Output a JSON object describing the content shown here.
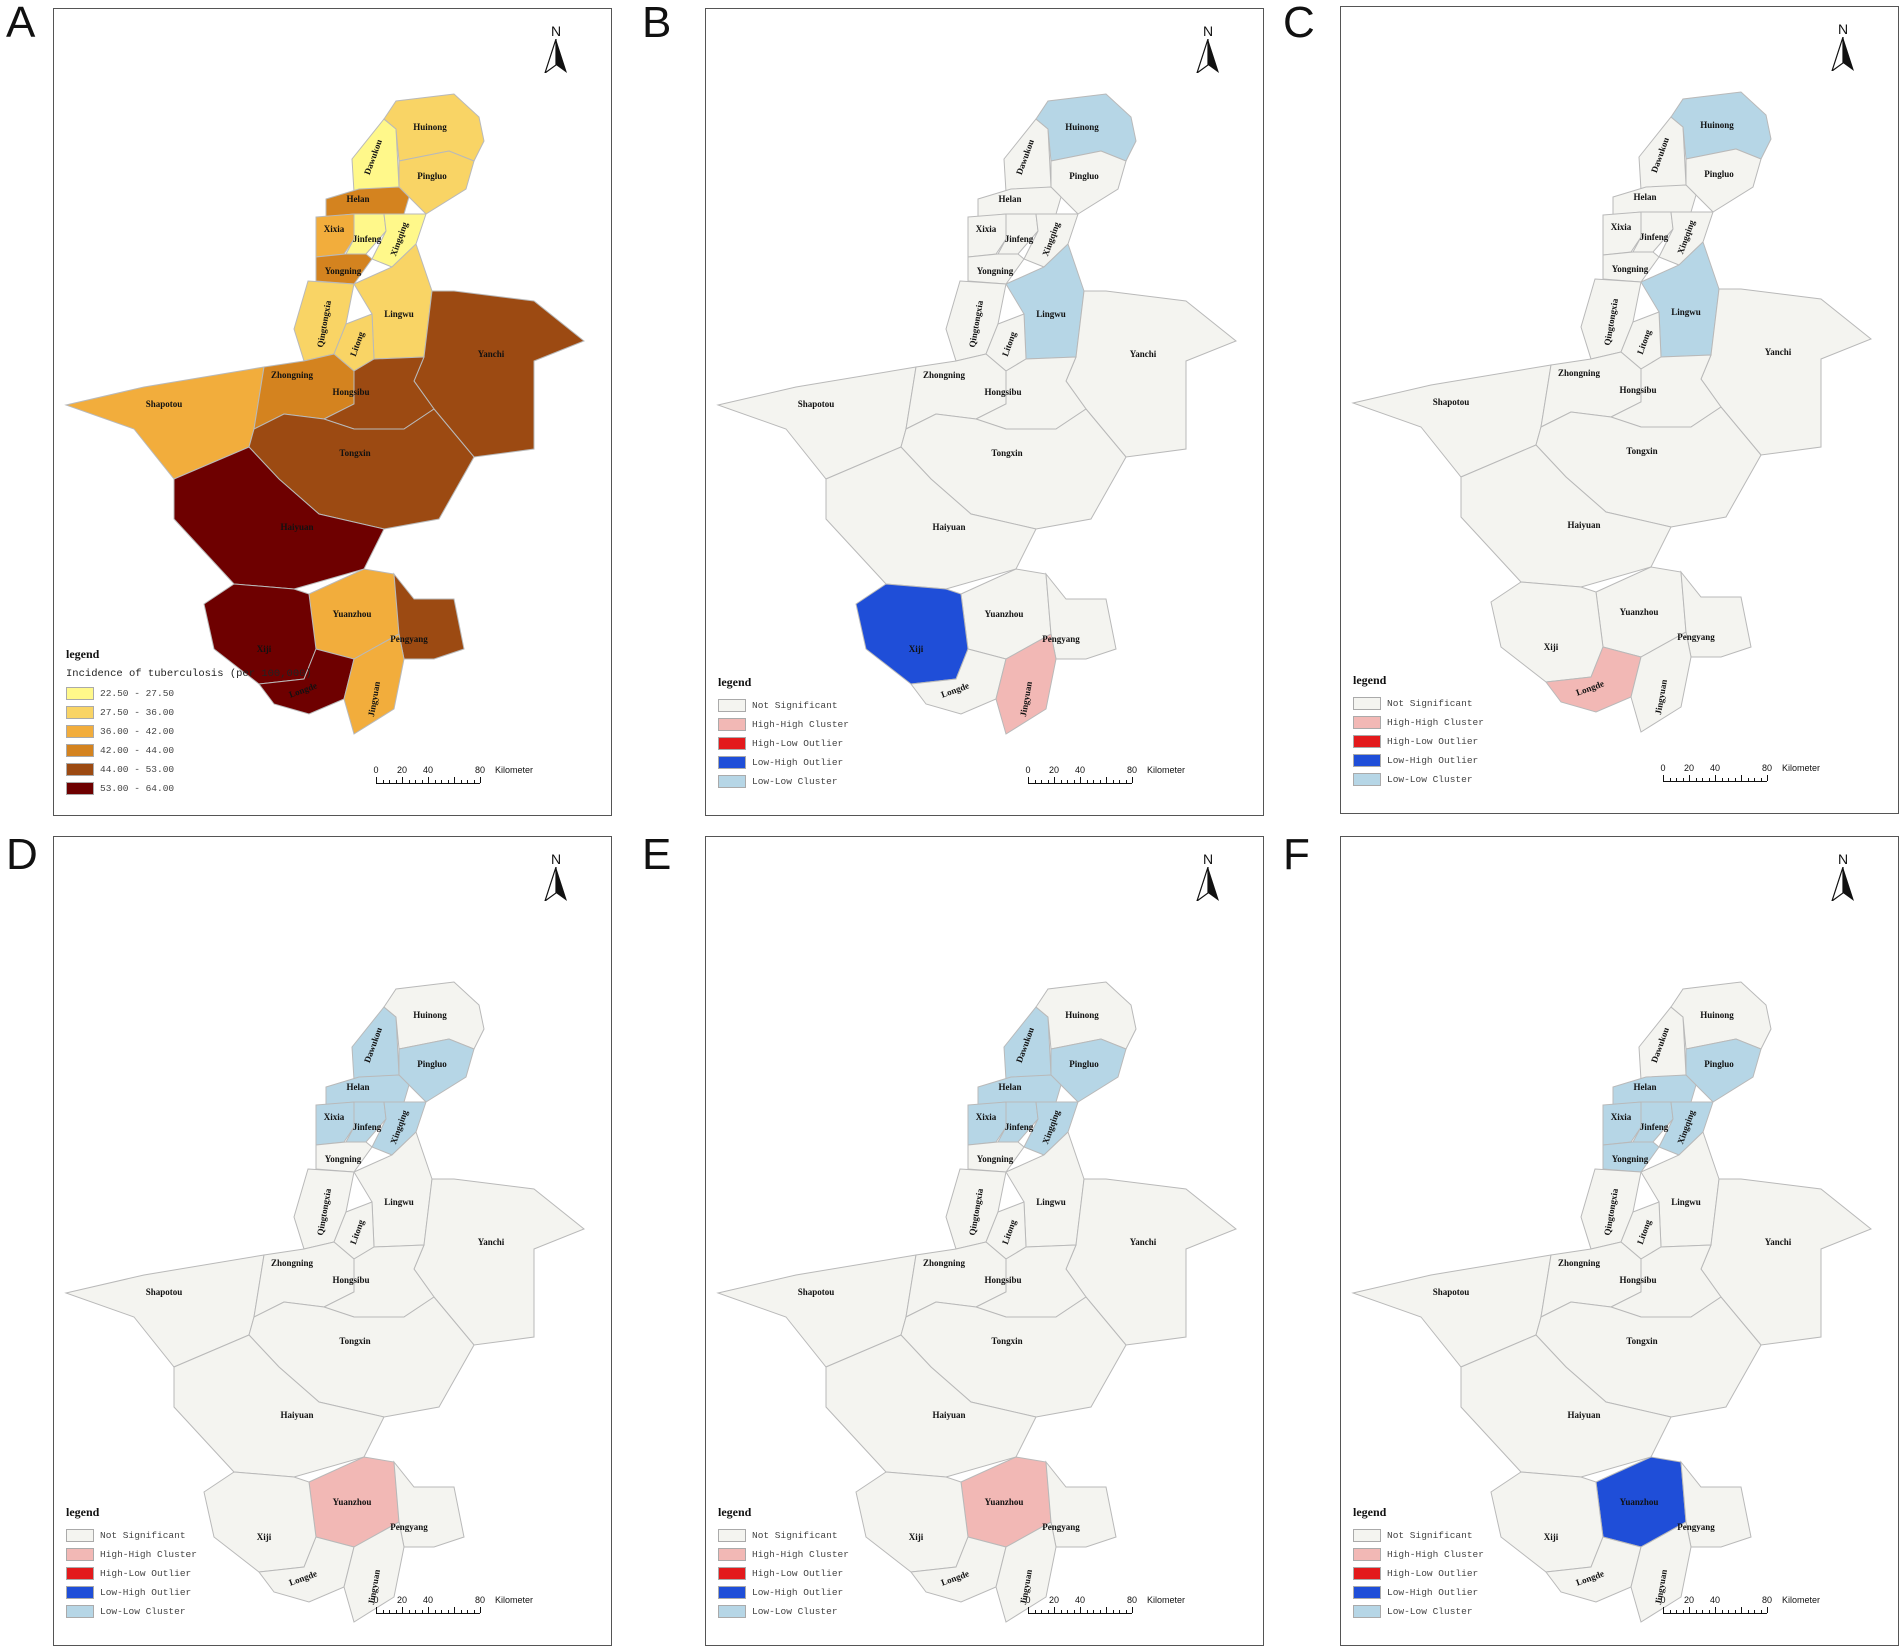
{
  "shared_legend": {
    "title": "legend",
    "lisa_items": [
      {
        "label": "Not Significant",
        "color": "#f4f4f0"
      },
      {
        "label": "High-High Cluster",
        "color": "#f2b8b5"
      },
      {
        "label": "High-Low Outlier",
        "color": "#e31a1c"
      },
      {
        "label": "Low-High Outlier",
        "color": "#1f4ed8"
      },
      {
        "label": "Low-Low Cluster",
        "color": "#b6d6e6"
      }
    ],
    "choropleth_subtitle": "Incidence of tuberculosis (per 100,000)",
    "choropleth_items": [
      {
        "label": "22.50 - 27.50",
        "color": "#fff88a"
      },
      {
        "label": "27.50 - 36.00",
        "color": "#f9d465"
      },
      {
        "label": "36.00 - 42.00",
        "color": "#f2ad3c"
      },
      {
        "label": "42.00 - 44.00",
        "color": "#d4831f"
      },
      {
        "label": "44.00 - 53.00",
        "color": "#9c4a12"
      },
      {
        "label": "53.00 - 64.00",
        "color": "#6e0000"
      }
    ]
  },
  "north_label": "N",
  "scale": {
    "ticks": [
      "0",
      "20",
      "40",
      "80"
    ],
    "unit": "Kilometer"
  },
  "panels": [
    {
      "letter": "A",
      "type": "choropleth",
      "fills": {
        "Dawukou": "#fff88a",
        "Huinong": "#f9d465",
        "Pingluo": "#f9d465",
        "Helan": "#d4831f",
        "Xixia": "#f2ad3c",
        "Jinfeng": "#fff88a",
        "Xingqing": "#fff88a",
        "Yongning": "#d4831f",
        "Qingtongxia": "#f9d465",
        "Lingwu": "#f9d465",
        "Litong": "#f9d465",
        "Yanchi": "#9c4a12",
        "Shapotou": "#f2ad3c",
        "Zhongning": "#d4831f",
        "Hongsibu": "#9c4a12",
        "Tongxin": "#9c4a12",
        "Haiyuan": "#6e0000",
        "Yuanzhou": "#f2ad3c",
        "Pengyang": "#9c4a12",
        "Xiji": "#6e0000",
        "Longde": "#6e0000",
        "Jingyuan": "#f2ad3c"
      }
    },
    {
      "letter": "B",
      "type": "lisa",
      "fills": {
        "Huinong": "#b6d6e6",
        "Lingwu": "#b6d6e6",
        "Xiji": "#1f4ed8",
        "Jingyuan": "#f2b8b5"
      }
    },
    {
      "letter": "C",
      "type": "lisa",
      "fills": {
        "Huinong": "#b6d6e6",
        "Lingwu": "#b6d6e6",
        "Longde": "#f2b8b5"
      }
    },
    {
      "letter": "D",
      "type": "lisa",
      "fills": {
        "Dawukou": "#b6d6e6",
        "Pingluo": "#b6d6e6",
        "Helan": "#b6d6e6",
        "Xixia": "#b6d6e6",
        "Jinfeng": "#b6d6e6",
        "Xingqing": "#b6d6e6",
        "Yuanzhou": "#f2b8b5"
      }
    },
    {
      "letter": "E",
      "type": "lisa",
      "fills": {
        "Dawukou": "#b6d6e6",
        "Pingluo": "#b6d6e6",
        "Helan": "#b6d6e6",
        "Xixia": "#b6d6e6",
        "Jinfeng": "#b6d6e6",
        "Xingqing": "#b6d6e6",
        "Yuanzhou": "#f2b8b5"
      }
    },
    {
      "letter": "F",
      "type": "lisa",
      "fills": {
        "Pingluo": "#b6d6e6",
        "Helan": "#b6d6e6",
        "Xixia": "#b6d6e6",
        "Jinfeng": "#b6d6e6",
        "Xingqing": "#b6d6e6",
        "Yongning": "#b6d6e6",
        "Yuanzhou": "#1f4ed8"
      }
    }
  ],
  "counties": [
    {
      "id": "Dawukou",
      "label": "Dawukou"
    },
    {
      "id": "Huinong",
      "label": "Huinong"
    },
    {
      "id": "Pingluo",
      "label": "Pingluo"
    },
    {
      "id": "Helan",
      "label": "Helan"
    },
    {
      "id": "Xixia",
      "label": "Xixia"
    },
    {
      "id": "Jinfeng",
      "label": "Jinfeng"
    },
    {
      "id": "Xingqing",
      "label": "Xingqing"
    },
    {
      "id": "Yongning",
      "label": "Yongning"
    },
    {
      "id": "Qingtongxia",
      "label": "Qingtongxia"
    },
    {
      "id": "Lingwu",
      "label": "Lingwu"
    },
    {
      "id": "Litong",
      "label": "Litong"
    },
    {
      "id": "Yanchi",
      "label": "Yanchi"
    },
    {
      "id": "Shapotou",
      "label": "Shapotou"
    },
    {
      "id": "Zhongning",
      "label": "Zhongning"
    },
    {
      "id": "Hongsibu",
      "label": "Hongsibu"
    },
    {
      "id": "Tongxin",
      "label": "Tongxin"
    },
    {
      "id": "Haiyuan",
      "label": "Haiyuan"
    },
    {
      "id": "Yuanzhou",
      "label": "Yuanzhou"
    },
    {
      "id": "Pengyang",
      "label": "Pengyang"
    },
    {
      "id": "Xiji",
      "label": "Xiji"
    },
    {
      "id": "Longde",
      "label": "Longde"
    },
    {
      "id": "Jingyuan",
      "label": "Jingyuan"
    }
  ],
  "default_fill": "#f4f4f0"
}
